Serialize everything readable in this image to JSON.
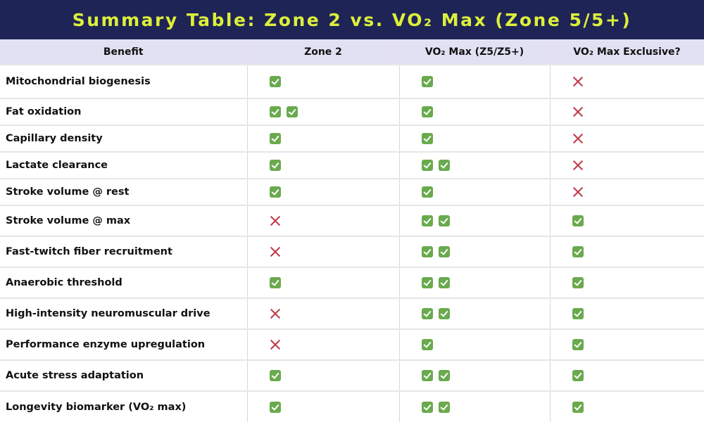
{
  "title": "Summary Table: Zone 2 vs. VO₂ Max (Zone 5/5+)",
  "headers": [
    "Benefit",
    "Zone 2",
    "VO₂ Max (Z5/Z5+)",
    "VO₂ Max Exclusive?"
  ],
  "colors": {
    "header_bg": "#1f2456",
    "title_text": "#dcf03a",
    "check": "#6aaa4e",
    "cross": "#c0394b"
  },
  "rows": [
    {
      "benefit": "Mitochondrial biogenesis",
      "zone2": "check",
      "vo2": "check",
      "exclusive": "cross"
    },
    {
      "benefit": "Fat oxidation",
      "zone2": "check-check",
      "vo2": "check",
      "exclusive": "cross"
    },
    {
      "benefit": "Capillary density",
      "zone2": "check",
      "vo2": "check",
      "exclusive": "cross"
    },
    {
      "benefit": "Lactate clearance",
      "zone2": "check",
      "vo2": "check-check",
      "exclusive": "cross"
    },
    {
      "benefit": "Stroke volume @ rest",
      "zone2": "check",
      "vo2": "check",
      "exclusive": "cross"
    },
    {
      "benefit": "Stroke volume @ max",
      "zone2": "cross",
      "vo2": "check-check",
      "exclusive": "check"
    },
    {
      "benefit": "Fast-twitch fiber recruitment",
      "zone2": "cross",
      "vo2": "check-check",
      "exclusive": "check"
    },
    {
      "benefit": "Anaerobic threshold",
      "zone2": "check",
      "vo2": "check-check",
      "exclusive": "check"
    },
    {
      "benefit": "High-intensity neuromuscular drive",
      "zone2": "cross",
      "vo2": "check-check",
      "exclusive": "check"
    },
    {
      "benefit": "Performance enzyme upregulation",
      "zone2": "cross",
      "vo2": "check",
      "exclusive": "check"
    },
    {
      "benefit": "Acute stress adaptation",
      "zone2": "check",
      "vo2": "check-check",
      "exclusive": "check"
    },
    {
      "benefit": "Longevity biomarker (VO₂ max)",
      "zone2": "check",
      "vo2": "check-check",
      "exclusive": "check"
    }
  ]
}
